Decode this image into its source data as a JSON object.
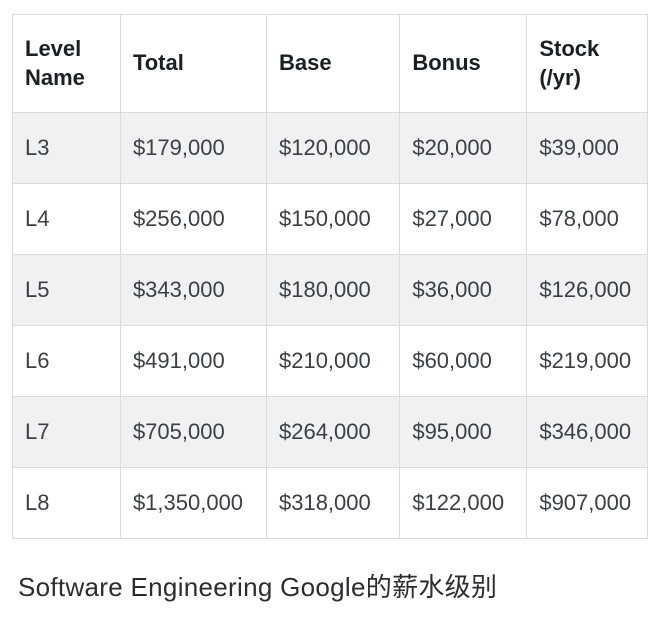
{
  "table": {
    "columns": [
      {
        "label": "Level Name",
        "width": "17%"
      },
      {
        "label": "Total",
        "width": "23%"
      },
      {
        "label": "Base",
        "width": "21%"
      },
      {
        "label": "Bonus",
        "width": "20%"
      },
      {
        "label": "Stock (/yr)",
        "width": "19%"
      }
    ],
    "rows": [
      [
        "L3",
        "$179,000",
        "$120,000",
        "$20,000",
        "$39,000"
      ],
      [
        "L4",
        "$256,000",
        "$150,000",
        "$27,000",
        "$78,000"
      ],
      [
        "L5",
        "$343,000",
        "$180,000",
        "$36,000",
        "$126,000"
      ],
      [
        "L6",
        "$491,000",
        "$210,000",
        "$60,000",
        "$219,000"
      ],
      [
        "L7",
        "$705,000",
        "$264,000",
        "$95,000",
        "$346,000"
      ],
      [
        "L8",
        "$1,350,000",
        "$318,000",
        "$122,000",
        "$907,000"
      ]
    ],
    "style": {
      "type": "table",
      "header_bg": "#ffffff",
      "header_color": "#1a1f24",
      "header_font_weight": 700,
      "header_fontsize_pt": 16,
      "cell_color": "#3a4046",
      "cell_fontsize_pt": 16,
      "row_odd_bg": "#f0f1f2",
      "row_even_bg": "#ffffff",
      "border_color": "#d9dcde",
      "font_family": "system-ui / sans-serif"
    }
  },
  "caption": "Software Engineering Google的薪水级别",
  "caption_style": {
    "fontsize_pt": 19,
    "color": "#2a2e33",
    "font_weight": 400
  }
}
